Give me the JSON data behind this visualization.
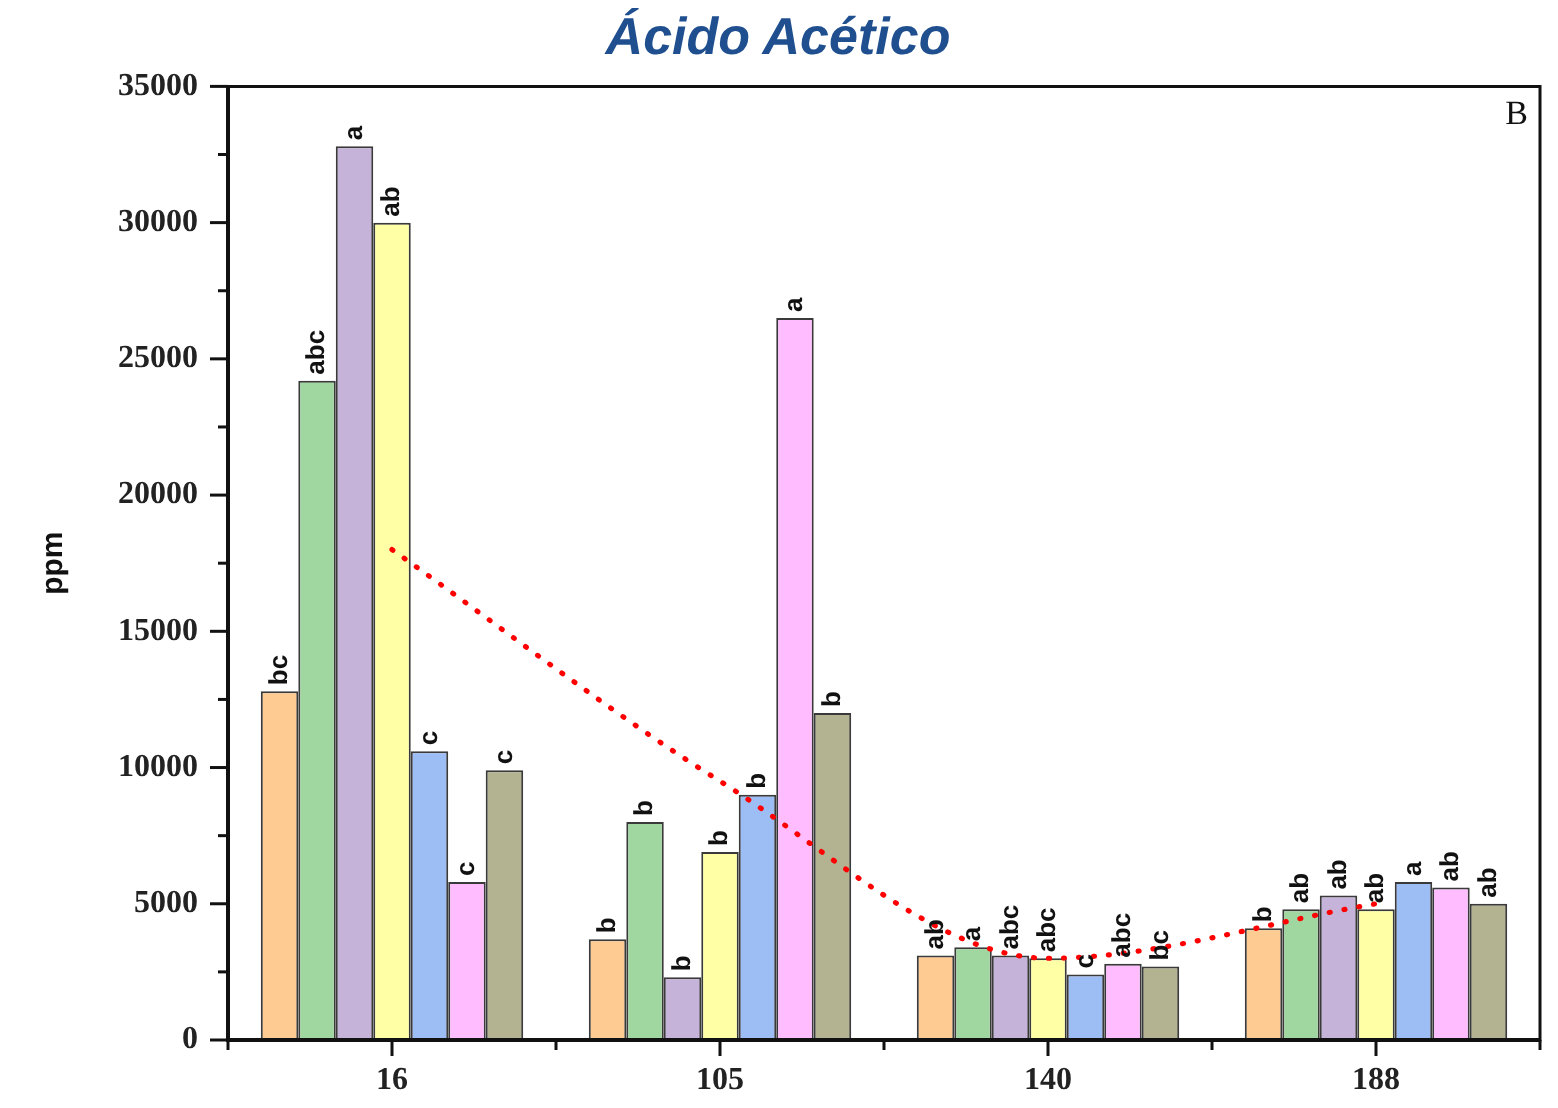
{
  "chart_data": {
    "type": "bar",
    "title": "Ácido Acético",
    "ylabel": "ppm",
    "categories": [
      "16",
      "105",
      "140",
      "188"
    ],
    "series": [
      {
        "color": "#fecc92",
        "values": [
          12800,
          3700,
          3100,
          4100
        ],
        "value_labels": [
          "bc",
          "b",
          "ab",
          "b"
        ]
      },
      {
        "color": "#a0d6a0",
        "values": [
          24200,
          8000,
          3400,
          4800
        ],
        "value_labels": [
          "abc",
          "b",
          "a",
          "ab"
        ]
      },
      {
        "color": "#c6b3d9",
        "values": [
          32800,
          2300,
          3100,
          5300
        ],
        "value_labels": [
          "a",
          "b",
          "abc",
          "ab"
        ]
      },
      {
        "color": "#ffffa6",
        "values": [
          30000,
          6900,
          3000,
          4800
        ],
        "value_labels": [
          "ab",
          "b",
          "abc",
          "ab"
        ]
      },
      {
        "color": "#9dbdf5",
        "values": [
          10600,
          9000,
          2400,
          5800
        ],
        "value_labels": [
          "c",
          "b",
          "c",
          "a"
        ]
      },
      {
        "color": "#ffbcff",
        "values": [
          5800,
          26500,
          2800,
          5600
        ],
        "value_labels": [
          "c",
          "a",
          "abc",
          "ab"
        ]
      },
      {
        "color": "#b3b392",
        "values": [
          9900,
          12000,
          2700,
          5000
        ],
        "value_labels": [
          "c",
          "b",
          "bc",
          "ab"
        ]
      },
      {
        "type": "line",
        "color": "#ff0000",
        "line_style": "dotted",
        "values": [
          18000,
          9500,
          3000,
          5000
        ]
      }
    ],
    "ylim": [
      0,
      35000
    ],
    "yticks": [
      0,
      {
        "value": 2500,
        "label": null
      },
      5000,
      {
        "value": 7500,
        "label": null
      },
      10000,
      {
        "value": 12500,
        "label": null
      },
      15000,
      {
        "value": 17500,
        "label": null
      },
      20000,
      {
        "value": 22500,
        "label": null
      },
      25000,
      {
        "value": 27500,
        "label": null
      },
      30000,
      {
        "value": 32500,
        "label": null
      },
      35000
    ],
    "grid": false,
    "legend": false,
    "annotations": [
      "B"
    ]
  }
}
